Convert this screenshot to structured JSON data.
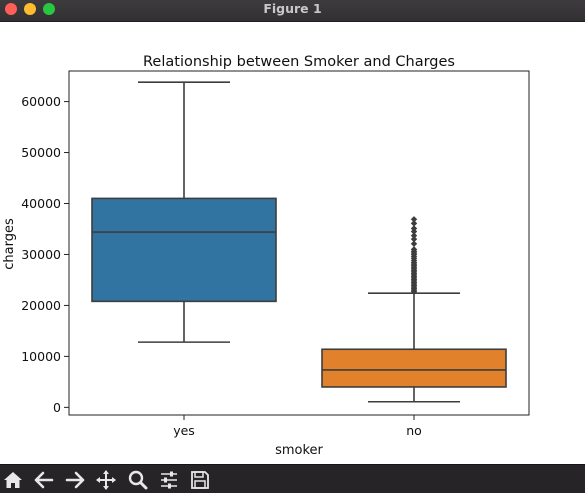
{
  "window": {
    "title": "Figure 1"
  },
  "chart_data": {
    "type": "box",
    "title": "Relationship between Smoker and Charges",
    "xlabel": "smoker",
    "ylabel": "charges",
    "categories": [
      "yes",
      "no"
    ],
    "ylim": [
      -1500,
      66000
    ],
    "yticks": [
      0,
      10000,
      20000,
      30000,
      40000,
      50000,
      60000
    ],
    "ytick_labels": [
      "0",
      "10000",
      "20000",
      "30000",
      "40000",
      "50000",
      "60000"
    ],
    "boxes": [
      {
        "category": "yes",
        "color": "#3274a1",
        "whisker_low": 12800,
        "q1": 20800,
        "median": 34400,
        "q3": 41000,
        "whisker_high": 63800,
        "outliers": []
      },
      {
        "category": "no",
        "color": "#e1812c",
        "whisker_low": 1100,
        "q1": 4000,
        "median": 7350,
        "q3": 11400,
        "whisker_high": 22400,
        "outliers": [
          22700,
          23000,
          23300,
          23600,
          23900,
          24200,
          24500,
          24800,
          25100,
          25400,
          25700,
          26000,
          26300,
          26600,
          26900,
          27200,
          27500,
          27800,
          28100,
          28400,
          28800,
          29200,
          29600,
          30000,
          30300,
          30600,
          31000,
          32100,
          33000,
          33700,
          34500,
          35100,
          36100,
          36900
        ]
      }
    ],
    "grid": false,
    "legend": "none"
  },
  "toolbar": {
    "icons": [
      "home-icon",
      "back-icon",
      "forward-icon",
      "pan-icon",
      "zoom-icon",
      "configure-subplots-icon",
      "save-icon"
    ]
  }
}
